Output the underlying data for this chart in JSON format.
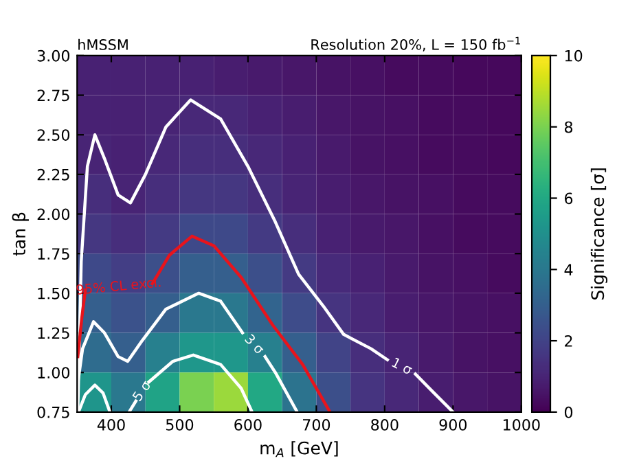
{
  "chart_data": {
    "type": "heatmap",
    "title": "hMSSM",
    "subtitle": "Resolution 20%, L = 150 fb$^{−1}$",
    "xlabel": "m$_{A}$ [GeV]",
    "ylabel": "tan β",
    "clabel": "Significance [σ]",
    "cells": [
      [
        0.9,
        0.9,
        0.9,
        0.9,
        0.8,
        0.7,
        0.6,
        0.5,
        0.4,
        0.3,
        0.3,
        0.2,
        0.2
      ],
      [
        0.9,
        0.9,
        1.0,
        1.1,
        1.1,
        0.9,
        0.8,
        0.6,
        0.5,
        0.4,
        0.3,
        0.3,
        0.2
      ],
      [
        1.0,
        0.9,
        1.1,
        1.3,
        1.3,
        1.1,
        0.9,
        0.7,
        0.5,
        0.4,
        0.3,
        0.3,
        0.2
      ],
      [
        1.3,
        1.0,
        1.3,
        1.6,
        1.6,
        1.3,
        1.0,
        0.8,
        0.6,
        0.5,
        0.4,
        0.3,
        0.3
      ],
      [
        1.6,
        1.3,
        1.7,
        2.2,
        2.2,
        1.7,
        1.3,
        0.9,
        0.7,
        0.6,
        0.4,
        0.3,
        0.3
      ],
      [
        2.2,
        1.8,
        2.4,
        3.0,
        3.0,
        2.4,
        1.7,
        1.2,
        0.9,
        0.7,
        0.5,
        0.4,
        0.3
      ],
      [
        3.0,
        2.5,
        3.0,
        4.0,
        4.0,
        3.2,
        2.3,
        1.5,
        1.1,
        0.8,
        0.6,
        0.5,
        0.4
      ],
      [
        3.5,
        3.0,
        4.3,
        5.3,
        5.3,
        4.3,
        3.0,
        2.0,
        1.3,
        1.0,
        0.7,
        0.5,
        0.4
      ],
      [
        5.2,
        4.0,
        5.8,
        8.0,
        8.5,
        6.0,
        3.8,
        2.4,
        1.5,
        1.1,
        0.8,
        0.6,
        0.5
      ]
    ],
    "clim": [
      0,
      10
    ],
    "cticks": [
      0,
      2,
      4,
      6,
      8,
      10
    ],
    "xlim": [
      350,
      1000
    ],
    "xticks": [
      400,
      500,
      600,
      700,
      800,
      900,
      1000
    ],
    "ylim": [
      0.75,
      3.0
    ],
    "yticks": [
      {
        "value": 0.75,
        "label": "0.75"
      },
      {
        "value": 1.0,
        "label": "1.00"
      },
      {
        "value": 1.25,
        "label": "1.25"
      },
      {
        "value": 1.5,
        "label": "1.50"
      },
      {
        "value": 1.75,
        "label": "1.75"
      },
      {
        "value": 2.0,
        "label": "2.00"
      },
      {
        "value": 2.25,
        "label": "2.25"
      },
      {
        "value": 2.5,
        "label": "2.50"
      },
      {
        "value": 2.75,
        "label": "2.75"
      },
      {
        "value": 3.0,
        "label": "3.00"
      }
    ],
    "series": [
      {
        "type": "line",
        "color": "#ffffff",
        "x": [
          351,
          356,
          365,
          376,
          390,
          410,
          428,
          450,
          480,
          516,
          560,
          600,
          640,
          674,
          710,
          740,
          780,
          804,
          825,
          845,
          870,
          900
        ],
        "values": [
          0.75,
          1.7,
          2.3,
          2.5,
          2.35,
          2.12,
          2.07,
          2.25,
          2.55,
          2.72,
          2.6,
          2.3,
          1.95,
          1.62,
          1.42,
          1.24,
          1.15,
          1.08,
          null,
          0.99,
          0.88,
          0.75
        ]
      },
      {
        "type": "line",
        "color": "#ffffff",
        "x": [
          350,
          358,
          374,
          390,
          410,
          424,
          445,
          480,
          528,
          560,
          592,
          605,
          625,
          640,
          672
        ],
        "values": [
          0.9,
          1.15,
          1.32,
          1.25,
          1.1,
          1.07,
          1.2,
          1.4,
          1.5,
          1.45,
          1.25,
          null,
          1.1,
          1.0,
          0.75
        ]
      },
      {
        "type": "line",
        "color": "#ffffff",
        "x": [
          352,
          362,
          376,
          388,
          398,
          405,
          426,
          436,
          445,
          455,
          490,
          520,
          560,
          590,
          606
        ],
        "values": [
          0.75,
          0.86,
          0.92,
          0.87,
          0.75,
          null,
          0.75,
          0.82,
          null,
          0.94,
          1.07,
          1.11,
          1.05,
          0.9,
          0.75
        ]
      },
      {
        "type": "line",
        "color": "#e8141c",
        "x": [
          351,
          357,
          362,
          400,
          460,
          485,
          518,
          550,
          590,
          636,
          680,
          720
        ],
        "values": [
          1.1,
          1.35,
          1.52,
          null,
          1.56,
          1.74,
          1.86,
          1.8,
          1.6,
          1.3,
          1.05,
          0.75
        ]
      }
    ],
    "annotations": [
      "1 σ",
      "3 σ",
      "5 σ",
      "95% CL excl."
    ]
  }
}
